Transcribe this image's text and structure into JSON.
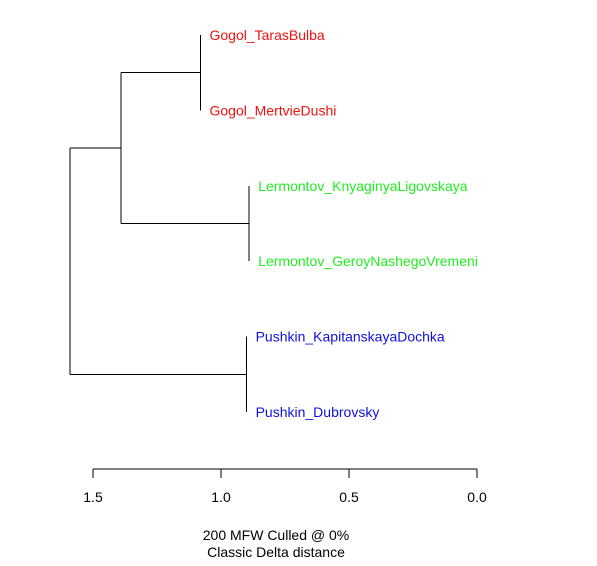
{
  "tree": {
    "leaves": [
      {
        "label": "Gogol_TarasBulba",
        "group": "gogol"
      },
      {
        "label": "Gogol_MertvieDushi",
        "group": "gogol"
      },
      {
        "label": "Lermontov_KnyaginyaLigovskaya",
        "group": "lermontov"
      },
      {
        "label": "Lermontov_GeroyNashegoVremeni",
        "group": "lermontov"
      },
      {
        "label": "Pushkin_KapitanskayaDochka",
        "group": "pushkin"
      },
      {
        "label": "Pushkin_Dubrovsky",
        "group": "pushkin"
      }
    ],
    "group_colors": {
      "gogol": "#ee1111",
      "lermontov": "#22ee22",
      "pushkin": "#1111dd"
    },
    "merges": [
      {
        "left": 0,
        "right": 1,
        "height": 1.08
      },
      {
        "left": 2,
        "right": 3,
        "height": 0.89
      },
      {
        "left": 4,
        "right": 5,
        "height": 0.9
      },
      {
        "left": "m0",
        "right": "m1",
        "height": 1.39
      },
      {
        "left": "m3",
        "right": "m2",
        "height": 1.59
      }
    ],
    "orientation": "leaves-right",
    "axis": {
      "min": 0.0,
      "max": 1.5,
      "reversed": true,
      "ticks": [
        "1.5",
        "1.0",
        "0.5",
        "0.0"
      ],
      "tick_values": [
        1.5,
        1.0,
        0.5,
        0.0
      ]
    }
  },
  "caption": {
    "line1": "200 MFW  Culled @ 0%",
    "line2": "Classic Delta distance"
  }
}
